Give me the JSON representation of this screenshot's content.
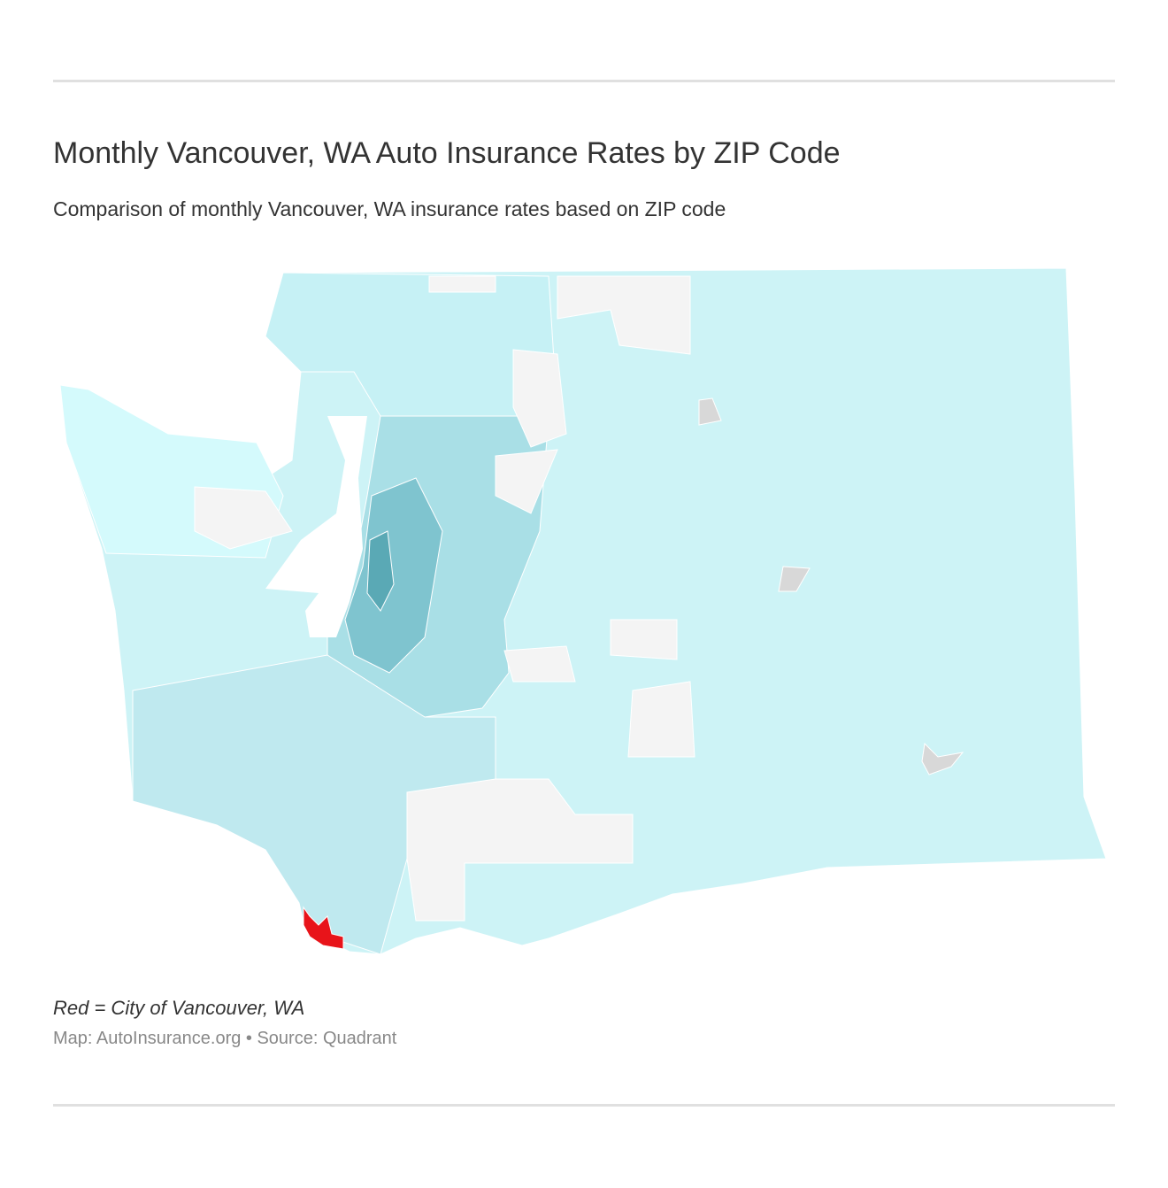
{
  "header": {
    "title": "Monthly Vancouver, WA Auto Insurance Rates by ZIP Code",
    "subtitle": "Comparison of monthly Vancouver, WA insurance rates based on ZIP code"
  },
  "footer": {
    "note": "Red = City of Vancouver, WA",
    "source": "Map: AutoInsurance.org • Source: Quadrant"
  }
}
